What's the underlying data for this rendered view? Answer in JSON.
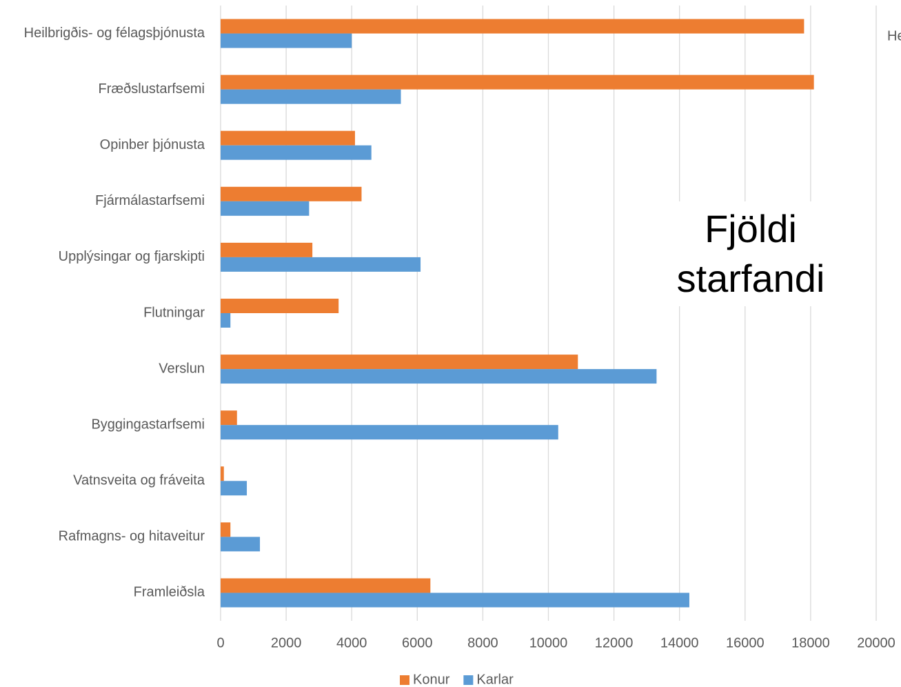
{
  "chart_data": {
    "type": "bar",
    "orientation": "horizontal",
    "title": "Fjöldi starfandi",
    "annotation": "He",
    "categories": [
      "Heilbrigðis- og félagsþjónusta",
      "Fræðslustarfsemi",
      "Opinber þjónusta",
      "Fjármálastarfsemi",
      "Upplýsingar og fjarskipti",
      "Flutningar",
      "Verslun",
      "Byggingastarfsemi",
      "Vatnsveita og fráveita",
      "Rafmagns- og hitaveitur",
      "Framleiðsla"
    ],
    "series": [
      {
        "name": "Konur",
        "color": "#ed7d31",
        "values": [
          17800,
          18100,
          4100,
          4300,
          2800,
          3600,
          10900,
          500,
          100,
          300,
          6400
        ]
      },
      {
        "name": "Karlar",
        "color": "#5b9bd5",
        "values": [
          4000,
          5500,
          4600,
          2700,
          6100,
          300,
          13300,
          10300,
          800,
          1200,
          14300
        ]
      }
    ],
    "xlim": [
      0,
      20000
    ],
    "xticks": [
      0,
      2000,
      4000,
      6000,
      8000,
      10000,
      12000,
      14000,
      16000,
      18000,
      20000
    ],
    "grid": true,
    "legend": "bottom"
  }
}
